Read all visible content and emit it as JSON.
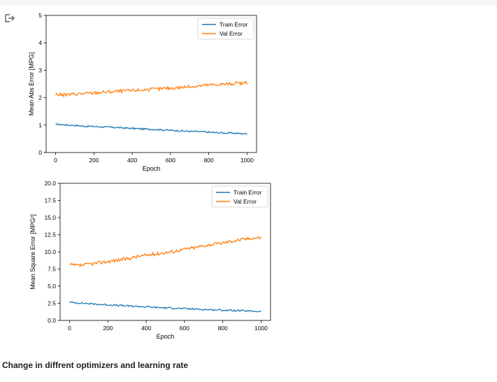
{
  "output": {
    "icon": "output-arrow-icon"
  },
  "colors": {
    "train": "#1f77b4",
    "val": "#ff7f0e"
  },
  "chart_data": [
    {
      "type": "line",
      "xlabel": "Epoch",
      "ylabel": "Mean Abs Error [MPG]",
      "xlim": [
        0,
        1000
      ],
      "ylim": [
        0,
        5
      ],
      "xticks": [
        0,
        200,
        400,
        600,
        800,
        1000
      ],
      "yticks": [
        0,
        1,
        2,
        3,
        4,
        5
      ],
      "xtick_labels": [
        "0",
        "200",
        "400",
        "600",
        "800",
        "1000"
      ],
      "ytick_labels": [
        "0",
        "1",
        "2",
        "3",
        "4",
        "5"
      ],
      "legend": "top-right",
      "grid": false,
      "x": [
        0,
        50,
        100,
        150,
        200,
        250,
        300,
        350,
        400,
        450,
        500,
        550,
        600,
        650,
        700,
        750,
        800,
        850,
        900,
        950,
        1000
      ],
      "series": [
        {
          "name": "Train Error",
          "color": "#1f77b4",
          "values": [
            1.03,
            1.01,
            0.99,
            0.96,
            0.95,
            0.93,
            0.92,
            0.9,
            0.88,
            0.86,
            0.85,
            0.83,
            0.81,
            0.79,
            0.77,
            0.76,
            0.74,
            0.72,
            0.71,
            0.7,
            0.68
          ]
        },
        {
          "name": "Val Error",
          "color": "#ff7f0e",
          "values": [
            2.12,
            2.1,
            2.13,
            2.15,
            2.17,
            2.2,
            2.22,
            2.24,
            2.26,
            2.28,
            2.3,
            2.32,
            2.35,
            2.37,
            2.4,
            2.43,
            2.46,
            2.48,
            2.5,
            2.52,
            2.53
          ]
        }
      ]
    },
    {
      "type": "line",
      "xlabel": "Epoch",
      "ylabel": "Mean Square Error [MPG²]",
      "xlim": [
        0,
        1000
      ],
      "ylim": [
        0,
        20
      ],
      "xticks": [
        0,
        200,
        400,
        600,
        800,
        1000
      ],
      "yticks": [
        0,
        2.5,
        5,
        7.5,
        10,
        12.5,
        15,
        17.5,
        20
      ],
      "xtick_labels": [
        "0",
        "200",
        "400",
        "600",
        "800",
        "1000"
      ],
      "ytick_labels": [
        "0.0",
        "2.5",
        "5.0",
        "7.5",
        "10.0",
        "12.5",
        "15.0",
        "17.5",
        "20.0"
      ],
      "legend": "top-right",
      "grid": false,
      "x": [
        0,
        50,
        100,
        150,
        200,
        250,
        300,
        350,
        400,
        450,
        500,
        550,
        600,
        650,
        700,
        750,
        800,
        850,
        900,
        950,
        1000
      ],
      "series": [
        {
          "name": "Train Error",
          "color": "#1f77b4",
          "values": [
            2.65,
            2.55,
            2.45,
            2.35,
            2.28,
            2.2,
            2.12,
            2.05,
            1.98,
            1.9,
            1.83,
            1.78,
            1.72,
            1.66,
            1.6,
            1.55,
            1.5,
            1.45,
            1.4,
            1.35,
            1.3
          ]
        },
        {
          "name": "Val Error",
          "color": "#ff7f0e",
          "values": [
            8.1,
            8.0,
            8.2,
            8.4,
            8.6,
            8.8,
            9.0,
            9.3,
            9.5,
            9.7,
            9.9,
            10.1,
            10.4,
            10.6,
            10.9,
            11.1,
            11.3,
            11.6,
            11.8,
            12.0,
            12.1
          ]
        }
      ]
    }
  ],
  "text_cell": {
    "heading": "Change in diffrent optimizers and learning rate"
  }
}
